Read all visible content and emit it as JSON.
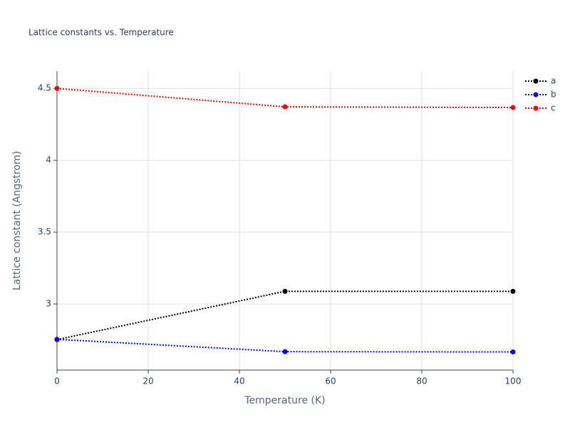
{
  "chart_data": {
    "type": "line",
    "title": "Lattice constants vs. Temperature",
    "x_label": "Temperature (K)",
    "y_label": "Lattice constant (Angstrom)",
    "x": [
      0,
      50,
      100
    ],
    "series": [
      {
        "name": "a",
        "color": "#000000",
        "values": [
          2.752,
          3.088,
          3.088
        ]
      },
      {
        "name": "b",
        "color": "#0000ff",
        "values": [
          2.754,
          2.668,
          2.666
        ]
      },
      {
        "name": "c",
        "color": "#ff0000",
        "values": [
          4.5,
          4.372,
          4.367
        ]
      }
    ],
    "xlim": [
      0,
      100
    ],
    "xticks": [
      0,
      20,
      40,
      60,
      80,
      100
    ],
    "ylim": [
      2.54,
      4.62
    ],
    "yticks": [
      3,
      3.5,
      4,
      4.5
    ],
    "grid": true,
    "legend": "top-right"
  }
}
